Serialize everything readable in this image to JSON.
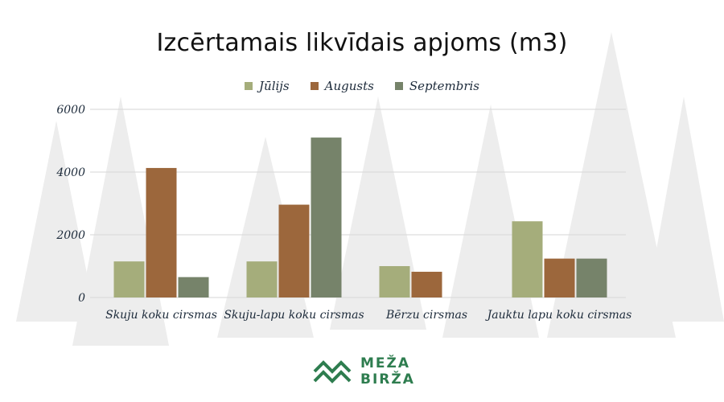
{
  "chart_data": {
    "type": "bar",
    "title": "Izcērtamais likvīdais apjoms (m3)",
    "categories": [
      "Skuju koku cirsmas",
      "Skuju-lapu koku cirsmas",
      "Bērzu cirsmas",
      "Jauktu lapu koku cirsmas"
    ],
    "series": [
      {
        "name": "Jūlijs",
        "color": "#a5ad7b",
        "values": [
          1150,
          1150,
          1000,
          2430
        ]
      },
      {
        "name": "Augusts",
        "color": "#9c673c",
        "values": [
          4130,
          2960,
          820,
          1240
        ]
      },
      {
        "name": "Septembris",
        "color": "#76836a",
        "values": [
          650,
          5100,
          0,
          1240
        ]
      }
    ],
    "ylim": [
      0,
      6000
    ],
    "yticks": [
      0,
      2000,
      4000,
      6000
    ],
    "grid": true,
    "legend_position": "top"
  },
  "logo": {
    "line1": "MEŽA",
    "line2": "BIRŽA",
    "color": "#2e7d4f"
  }
}
